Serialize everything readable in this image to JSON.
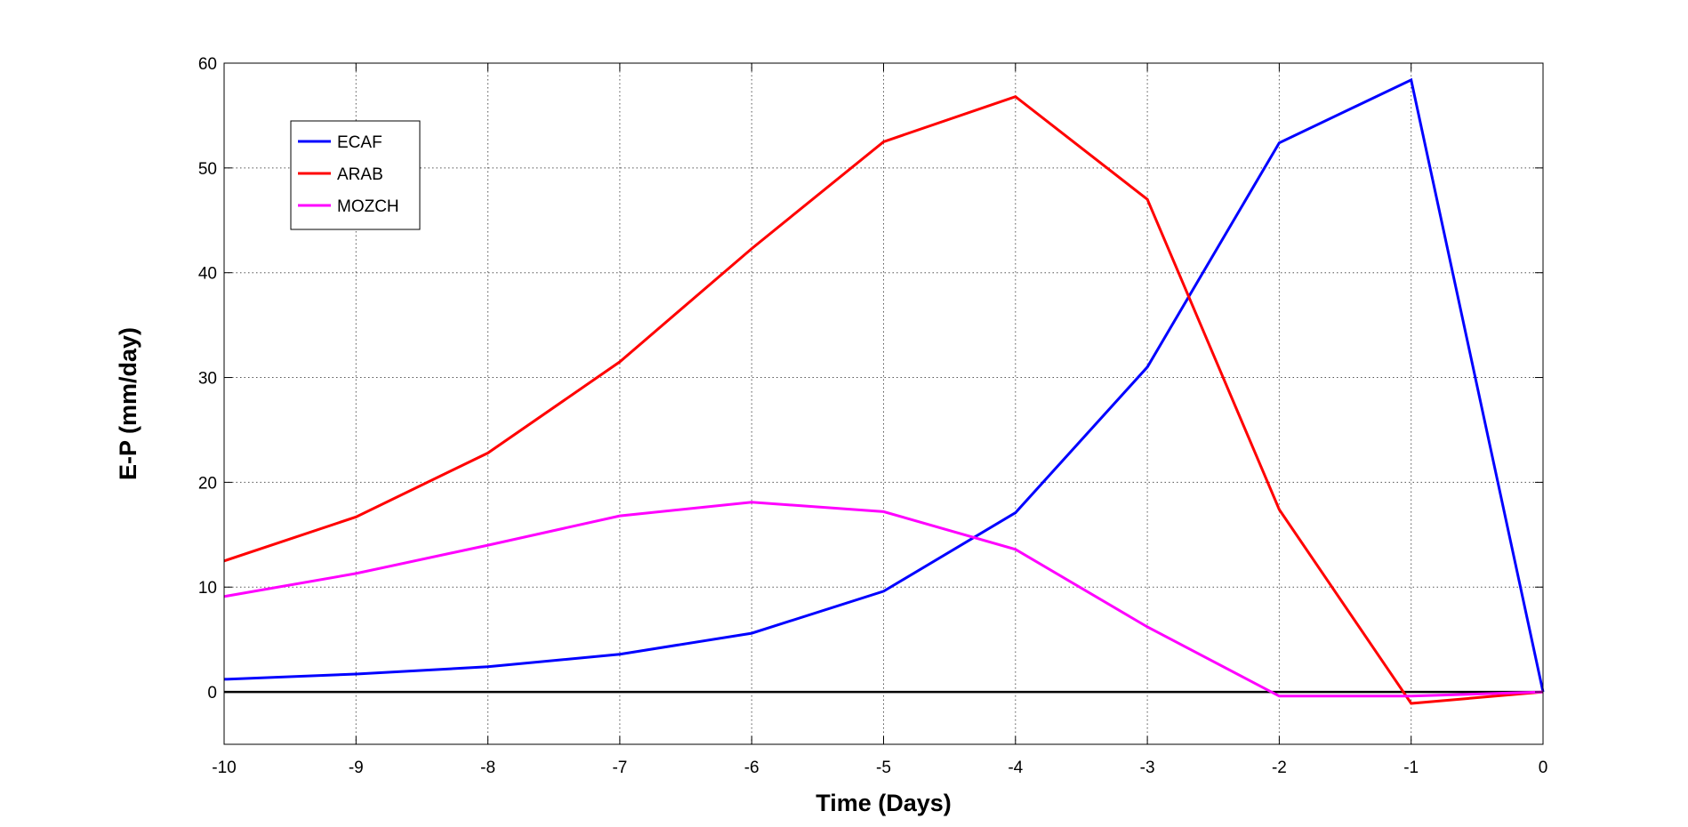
{
  "chart_data": {
    "type": "line",
    "title": "",
    "xlabel": "Time (Days)",
    "ylabel": "E-P (mm/day)",
    "xlim": [
      -10,
      0
    ],
    "ylim": [
      -5,
      60
    ],
    "xticks": [
      -10,
      -9,
      -8,
      -7,
      -6,
      -5,
      -4,
      -3,
      -2,
      -1,
      0
    ],
    "yticks": [
      0,
      10,
      20,
      30,
      40,
      50,
      60
    ],
    "x": [
      -10,
      -9,
      -8,
      -7,
      -6,
      -5,
      -4,
      -3,
      -2,
      -1,
      0
    ],
    "grid": true,
    "legend_position": "top-left",
    "zero_line": true,
    "series": [
      {
        "name": "ECAF",
        "color": "#0000ff",
        "values": [
          1.2,
          1.7,
          2.4,
          3.6,
          5.6,
          9.6,
          17.1,
          31.0,
          52.4,
          58.4,
          0.0
        ]
      },
      {
        "name": "ARAB",
        "color": "#ff0000",
        "values": [
          12.5,
          16.7,
          22.8,
          31.5,
          42.3,
          52.5,
          56.8,
          47.0,
          17.4,
          -1.1,
          0.0
        ]
      },
      {
        "name": "MOZCH",
        "color": "#ff00ff",
        "values": [
          9.1,
          11.3,
          14.0,
          16.8,
          18.1,
          17.2,
          13.6,
          6.2,
          -0.4,
          -0.4,
          0.0
        ]
      }
    ]
  }
}
